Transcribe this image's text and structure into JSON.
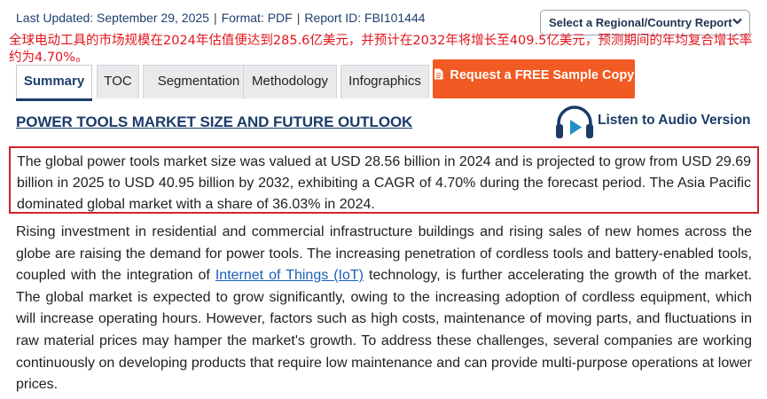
{
  "meta": {
    "updated": "Last Updated: September 29, 2025",
    "format": "Format: PDF",
    "report_id": "Report ID: FBI101444",
    "separator": "|"
  },
  "region_select": {
    "label": "Select a Regional/Country Report",
    "icon": "chevron-down-icon"
  },
  "overlay_text": "全球电动工具的市场规模在2024年估值便达到285.6亿美元，并预计在2032年将增长至409.5亿美元，预测期间的年均复合增长率约为4.70%。",
  "tabs": [
    {
      "label": "Summary"
    },
    {
      "label": "TOC"
    },
    {
      "label": "Segmentation"
    },
    {
      "label": "Methodology"
    },
    {
      "label": "Infographics"
    }
  ],
  "sample_button": {
    "label": "Request a FREE Sample Copy",
    "icon": "document-icon"
  },
  "headline": "POWER TOOLS MARKET SIZE AND FUTURE OUTLOOK",
  "audio": {
    "label": "Listen to Audio Version",
    "icon": "headphones-play-icon"
  },
  "summary_paragraph": "The global power tools market size was valued at USD 28.56 billion in 2024 and is projected to grow from USD 29.69 billion in 2025 to USD 40.95 billion by 2032, exhibiting a CAGR of 4.70% during the forecast period. The Asia Pacific dominated global market with a share of 36.03% in 2024.",
  "body": {
    "part1": "Rising investment in residential and commercial infrastructure buildings and rising sales of new homes across the globe are raising the demand for power tools. The increasing penetration of cordless tools and battery-enabled tools, coupled with the integration of ",
    "link": "Internet of Things (IoT)",
    "part2": " technology, is further accelerating the growth of the market. The global market is expected to grow significantly, owing to the increasing adoption of cordless equipment, which will increase operating hours. However, factors such as high costs, maintenance of moving parts, and fluctuations in raw material prices may hamper the market's growth. To address these challenges, several companies are working continuously on developing products that require low maintenance and can provide multi-purpose operations at lower prices."
  },
  "colors": {
    "navy": "#1b3b69",
    "orange": "#f15a22",
    "red": "#e2141c",
    "link": "#1a5fb4",
    "audio_teal": "#1f8ec7"
  }
}
